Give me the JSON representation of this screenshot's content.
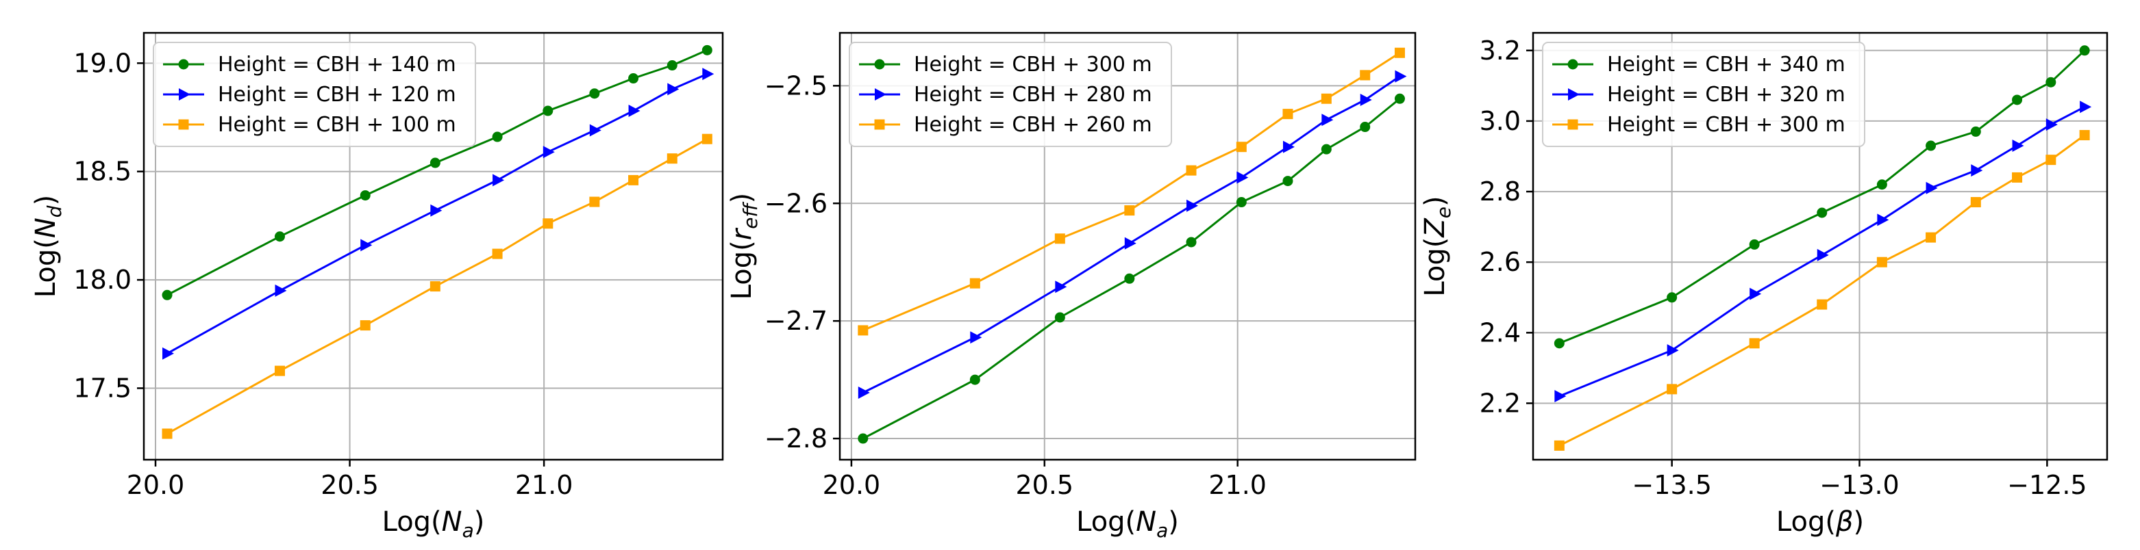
{
  "chart_data": [
    {
      "type": "line",
      "title": "",
      "xlabel": "Log(",
      "xlabel_var": "N",
      "xlabel_sub": "a",
      "ylabel": "Log(",
      "ylabel_var": "N",
      "ylabel_sub": "d",
      "xlim": [
        19.97,
        21.46
      ],
      "ylim": [
        17.17,
        19.14
      ],
      "xticks": [
        20.0,
        20.5,
        21.0
      ],
      "xtick_labels": [
        "20.0",
        "20.5",
        "21.0"
      ],
      "yticks": [
        17.5,
        18.0,
        18.5,
        19.0
      ],
      "ytick_labels": [
        "17.5",
        "18.0",
        "18.5",
        "19.0"
      ],
      "legend_position": "upper-left",
      "grid": true,
      "series": [
        {
          "name": "Height = CBH + 140 m",
          "color": "#008000",
          "marker": "circle",
          "x": [
            20.03,
            20.32,
            20.54,
            20.72,
            20.88,
            21.01,
            21.13,
            21.23,
            21.33,
            21.42
          ],
          "y": [
            17.93,
            18.2,
            18.39,
            18.54,
            18.66,
            18.78,
            18.86,
            18.93,
            18.99,
            19.06
          ]
        },
        {
          "name": "Height = CBH + 120 m",
          "color": "#0000ff",
          "marker": "triangle-right",
          "x": [
            20.03,
            20.32,
            20.54,
            20.72,
            20.88,
            21.01,
            21.13,
            21.23,
            21.33,
            21.42
          ],
          "y": [
            17.66,
            17.95,
            18.16,
            18.32,
            18.46,
            18.59,
            18.69,
            18.78,
            18.88,
            18.95
          ]
        },
        {
          "name": "Height = CBH + 100 m",
          "color": "#ffa500",
          "marker": "square",
          "x": [
            20.03,
            20.32,
            20.54,
            20.72,
            20.88,
            21.01,
            21.13,
            21.23,
            21.33,
            21.42
          ],
          "y": [
            17.29,
            17.58,
            17.79,
            17.97,
            18.12,
            18.26,
            18.36,
            18.46,
            18.56,
            18.65
          ]
        }
      ]
    },
    {
      "type": "line",
      "title": "",
      "xlabel": "Log(",
      "xlabel_var": "N",
      "xlabel_sub": "a",
      "ylabel": "Log(",
      "ylabel_var": "r",
      "ylabel_sub": "eff",
      "xlim": [
        19.97,
        21.46
      ],
      "ylim": [
        -2.818,
        -2.455
      ],
      "xticks": [
        20.0,
        20.5,
        21.0
      ],
      "xtick_labels": [
        "20.0",
        "20.5",
        "21.0"
      ],
      "yticks": [
        -2.8,
        -2.7,
        -2.6,
        -2.5
      ],
      "ytick_labels": [
        "−2.8",
        "−2.7",
        "−2.6",
        "−2.5"
      ],
      "legend_position": "upper-left",
      "grid": true,
      "series": [
        {
          "name": "Height = CBH + 300 m",
          "color": "#008000",
          "marker": "circle",
          "x": [
            20.03,
            20.32,
            20.54,
            20.72,
            20.88,
            21.01,
            21.13,
            21.23,
            21.33,
            21.42
          ],
          "y": [
            -2.8,
            -2.75,
            -2.697,
            -2.664,
            -2.633,
            -2.599,
            -2.581,
            -2.554,
            -2.535,
            -2.511
          ]
        },
        {
          "name": "Height = CBH + 280 m",
          "color": "#0000ff",
          "marker": "triangle-right",
          "x": [
            20.03,
            20.32,
            20.54,
            20.72,
            20.88,
            21.01,
            21.13,
            21.23,
            21.33,
            21.42
          ],
          "y": [
            -2.761,
            -2.714,
            -2.671,
            -2.634,
            -2.602,
            -2.578,
            -2.552,
            -2.529,
            -2.512,
            -2.492
          ]
        },
        {
          "name": "Height = CBH + 260 m",
          "color": "#ffa500",
          "marker": "square",
          "x": [
            20.03,
            20.32,
            20.54,
            20.72,
            20.88,
            21.01,
            21.13,
            21.23,
            21.33,
            21.42
          ],
          "y": [
            -2.708,
            -2.668,
            -2.63,
            -2.606,
            -2.572,
            -2.552,
            -2.524,
            -2.511,
            -2.491,
            -2.472
          ]
        }
      ]
    },
    {
      "type": "line",
      "title": "",
      "xlabel": "Log(",
      "xlabel_var": "β",
      "xlabel_sub": "",
      "ylabel": "Log(",
      "ylabel_var": "Z",
      "ylabel_sub": "e",
      "xlim": [
        -13.87,
        -12.34
      ],
      "ylim": [
        2.04,
        3.25
      ],
      "xticks": [
        -13.5,
        -13.0,
        -12.5
      ],
      "xtick_labels": [
        "−13.5",
        "−13.0",
        "−12.5"
      ],
      "yticks": [
        2.2,
        2.4,
        2.6,
        2.8,
        3.0,
        3.2
      ],
      "ytick_labels": [
        "2.2",
        "2.4",
        "2.6",
        "2.8",
        "3.0",
        "3.2"
      ],
      "legend_position": "upper-left",
      "grid": true,
      "series": [
        {
          "name": "Height = CBH + 340 m",
          "color": "#008000",
          "marker": "circle",
          "x": [
            -13.8,
            -13.5,
            -13.28,
            -13.1,
            -12.94,
            -12.81,
            -12.69,
            -12.58,
            -12.49,
            -12.4
          ],
          "y": [
            2.37,
            2.5,
            2.65,
            2.74,
            2.82,
            2.93,
            2.97,
            3.06,
            3.11,
            3.2
          ]
        },
        {
          "name": "Height = CBH + 320 m",
          "color": "#0000ff",
          "marker": "triangle-right",
          "x": [
            -13.8,
            -13.5,
            -13.28,
            -13.1,
            -12.94,
            -12.81,
            -12.69,
            -12.58,
            -12.49,
            -12.4
          ],
          "y": [
            2.22,
            2.35,
            2.51,
            2.62,
            2.72,
            2.81,
            2.86,
            2.93,
            2.99,
            3.04
          ]
        },
        {
          "name": "Height = CBH + 300 m",
          "color": "#ffa500",
          "marker": "square",
          "x": [
            -13.8,
            -13.5,
            -13.28,
            -13.1,
            -12.94,
            -12.81,
            -12.69,
            -12.58,
            -12.49,
            -12.4
          ],
          "y": [
            2.08,
            2.24,
            2.37,
            2.48,
            2.6,
            2.67,
            2.77,
            2.84,
            2.89,
            2.96
          ]
        }
      ]
    }
  ]
}
